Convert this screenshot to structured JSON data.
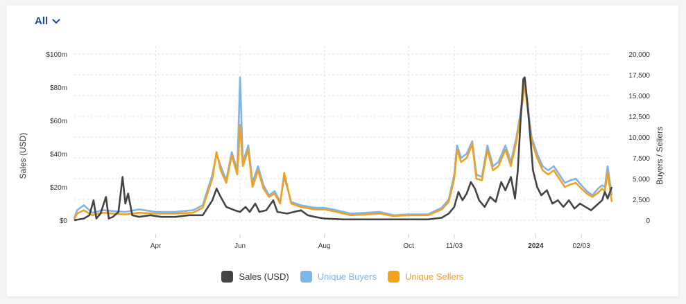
{
  "filter": {
    "label": "All"
  },
  "colors": {
    "sales": "#444444",
    "buyers": "#7cb5ec",
    "sellers": "#f1a11e",
    "grid": "#e0e0e0",
    "axis_text": "#333333"
  },
  "chart_data": {
    "type": "line",
    "title": "",
    "left_axis": {
      "label": "Sales (USD)",
      "min": 0,
      "max": 100,
      "unit": "$m",
      "ticks": [
        "$0",
        "$20m",
        "$40m",
        "$60m",
        "$80m",
        "$100m"
      ],
      "tick_values": [
        0,
        20,
        40,
        60,
        80,
        100
      ]
    },
    "right_axis": {
      "label": "Buyers / Sellers",
      "min": 0,
      "max": 20000,
      "ticks": [
        "0",
        "2,500",
        "5,000",
        "7,500",
        "10,000",
        "12,500",
        "15,000",
        "17,500",
        "20,000"
      ],
      "tick_values": [
        0,
        2500,
        5000,
        7500,
        10000,
        12500,
        15000,
        17500,
        20000
      ]
    },
    "x_axis": {
      "range": [
        "2023-02-01",
        "2024-02-25"
      ],
      "ticks": [
        {
          "label": "Apr",
          "date": "2023-04-01",
          "bold": false
        },
        {
          "label": "Jun",
          "date": "2023-06-01",
          "bold": false
        },
        {
          "label": "Aug",
          "date": "2023-08-01",
          "bold": false
        },
        {
          "label": "Oct",
          "date": "2023-10-01",
          "bold": false
        },
        {
          "label": "11/03",
          "date": "2023-11-03",
          "bold": false
        },
        {
          "label": "2024",
          "date": "2024-01-01",
          "bold": true
        },
        {
          "label": "02/03",
          "date": "2024-02-03",
          "bold": false
        }
      ]
    },
    "grid": true,
    "legend_position": "bottom-center",
    "series": [
      {
        "name": "Sales (USD)",
        "axis": "left",
        "unit": "$m",
        "points": [
          [
            "2023-02-01",
            0
          ],
          [
            "2023-02-08",
            1
          ],
          [
            "2023-02-12",
            3
          ],
          [
            "2023-02-15",
            12
          ],
          [
            "2023-02-17",
            1
          ],
          [
            "2023-02-20",
            4
          ],
          [
            "2023-02-24",
            14
          ],
          [
            "2023-02-26",
            1
          ],
          [
            "2023-03-01",
            2
          ],
          [
            "2023-03-05",
            5
          ],
          [
            "2023-03-08",
            26
          ],
          [
            "2023-03-10",
            10
          ],
          [
            "2023-03-12",
            16
          ],
          [
            "2023-03-15",
            3
          ],
          [
            "2023-03-20",
            2
          ],
          [
            "2023-03-28",
            3
          ],
          [
            "2023-04-05",
            2
          ],
          [
            "2023-04-15",
            2
          ],
          [
            "2023-04-25",
            3
          ],
          [
            "2023-05-05",
            3
          ],
          [
            "2023-05-12",
            12
          ],
          [
            "2023-05-15",
            19
          ],
          [
            "2023-05-18",
            14
          ],
          [
            "2023-05-22",
            8
          ],
          [
            "2023-05-28",
            6
          ],
          [
            "2023-06-01",
            5
          ],
          [
            "2023-06-05",
            8
          ],
          [
            "2023-06-08",
            5
          ],
          [
            "2023-06-12",
            10
          ],
          [
            "2023-06-15",
            5
          ],
          [
            "2023-06-20",
            6
          ],
          [
            "2023-06-25",
            12
          ],
          [
            "2023-06-28",
            5
          ],
          [
            "2023-07-05",
            4
          ],
          [
            "2023-07-10",
            5
          ],
          [
            "2023-07-15",
            6
          ],
          [
            "2023-07-20",
            3
          ],
          [
            "2023-07-25",
            2
          ],
          [
            "2023-08-01",
            1
          ],
          [
            "2023-08-15",
            0.5
          ],
          [
            "2023-09-01",
            0.5
          ],
          [
            "2023-09-15",
            0.5
          ],
          [
            "2023-10-01",
            0.5
          ],
          [
            "2023-10-15",
            0.5
          ],
          [
            "2023-10-25",
            1.5
          ],
          [
            "2023-10-30",
            4
          ],
          [
            "2023-11-03",
            8
          ],
          [
            "2023-11-06",
            17
          ],
          [
            "2023-11-09",
            12
          ],
          [
            "2023-11-12",
            16
          ],
          [
            "2023-11-15",
            23
          ],
          [
            "2023-11-18",
            19
          ],
          [
            "2023-11-21",
            12
          ],
          [
            "2023-11-25",
            8
          ],
          [
            "2023-11-29",
            14
          ],
          [
            "2023-12-03",
            11
          ],
          [
            "2023-12-07",
            23
          ],
          [
            "2023-12-10",
            18
          ],
          [
            "2023-12-14",
            26
          ],
          [
            "2023-12-17",
            13
          ],
          [
            "2023-12-19",
            30
          ],
          [
            "2023-12-21",
            60
          ],
          [
            "2023-12-23",
            85
          ],
          [
            "2023-12-24",
            86
          ],
          [
            "2023-12-26",
            70
          ],
          [
            "2023-12-28",
            50
          ],
          [
            "2023-12-30",
            30
          ],
          [
            "2024-01-02",
            20
          ],
          [
            "2024-01-05",
            15
          ],
          [
            "2024-01-09",
            18
          ],
          [
            "2024-01-13",
            10
          ],
          [
            "2024-01-17",
            12
          ],
          [
            "2024-01-21",
            8
          ],
          [
            "2024-01-25",
            12
          ],
          [
            "2024-01-29",
            7
          ],
          [
            "2024-02-02",
            10
          ],
          [
            "2024-02-06",
            8
          ],
          [
            "2024-02-10",
            6
          ],
          [
            "2024-02-14",
            9
          ],
          [
            "2024-02-18",
            12
          ],
          [
            "2024-02-20",
            17
          ],
          [
            "2024-02-22",
            13
          ],
          [
            "2024-02-25",
            20
          ]
        ]
      },
      {
        "name": "Unique Buyers",
        "axis": "right",
        "points": [
          [
            "2023-02-01",
            200
          ],
          [
            "2023-02-03",
            1200
          ],
          [
            "2023-02-08",
            1800
          ],
          [
            "2023-02-14",
            900
          ],
          [
            "2023-02-22",
            1200
          ],
          [
            "2023-03-01",
            1100
          ],
          [
            "2023-03-10",
            1000
          ],
          [
            "2023-03-20",
            1300
          ],
          [
            "2023-04-01",
            1000
          ],
          [
            "2023-04-15",
            1000
          ],
          [
            "2023-04-28",
            1200
          ],
          [
            "2023-05-05",
            1800
          ],
          [
            "2023-05-12",
            5500
          ],
          [
            "2023-05-15",
            8000
          ],
          [
            "2023-05-18",
            6500
          ],
          [
            "2023-05-22",
            4800
          ],
          [
            "2023-05-26",
            8200
          ],
          [
            "2023-05-30",
            6000
          ],
          [
            "2023-06-01",
            17200
          ],
          [
            "2023-06-03",
            7000
          ],
          [
            "2023-06-07",
            9000
          ],
          [
            "2023-06-10",
            4500
          ],
          [
            "2023-06-14",
            6500
          ],
          [
            "2023-06-18",
            4200
          ],
          [
            "2023-06-22",
            3000
          ],
          [
            "2023-06-26",
            3500
          ],
          [
            "2023-06-30",
            2200
          ],
          [
            "2023-07-03",
            5200
          ],
          [
            "2023-07-08",
            2200
          ],
          [
            "2023-07-15",
            1800
          ],
          [
            "2023-07-25",
            1500
          ],
          [
            "2023-08-01",
            1500
          ],
          [
            "2023-08-10",
            1200
          ],
          [
            "2023-08-20",
            800
          ],
          [
            "2023-09-01",
            900
          ],
          [
            "2023-09-10",
            1000
          ],
          [
            "2023-09-20",
            600
          ],
          [
            "2023-10-01",
            700
          ],
          [
            "2023-10-15",
            700
          ],
          [
            "2023-10-25",
            1500
          ],
          [
            "2023-10-30",
            2500
          ],
          [
            "2023-11-03",
            5500
          ],
          [
            "2023-11-05",
            9000
          ],
          [
            "2023-11-08",
            7500
          ],
          [
            "2023-11-12",
            8000
          ],
          [
            "2023-11-16",
            9500
          ],
          [
            "2023-11-19",
            5500
          ],
          [
            "2023-11-23",
            5200
          ],
          [
            "2023-11-27",
            9000
          ],
          [
            "2023-12-01",
            6500
          ],
          [
            "2023-12-05",
            7000
          ],
          [
            "2023-12-10",
            9000
          ],
          [
            "2023-12-14",
            7000
          ],
          [
            "2023-12-18",
            10000
          ],
          [
            "2023-12-21",
            13000
          ],
          [
            "2023-12-24",
            16800
          ],
          [
            "2023-12-26",
            14000
          ],
          [
            "2023-12-29",
            10000
          ],
          [
            "2024-01-02",
            8000
          ],
          [
            "2024-01-06",
            6500
          ],
          [
            "2024-01-10",
            6000
          ],
          [
            "2024-01-14",
            6500
          ],
          [
            "2024-01-18",
            5500
          ],
          [
            "2024-01-22",
            4500
          ],
          [
            "2024-01-26",
            4800
          ],
          [
            "2024-01-30",
            5000
          ],
          [
            "2024-02-03",
            4200
          ],
          [
            "2024-02-07",
            3500
          ],
          [
            "2024-02-11",
            3000
          ],
          [
            "2024-02-15",
            3800
          ],
          [
            "2024-02-18",
            4200
          ],
          [
            "2024-02-20",
            4000
          ],
          [
            "2024-02-22",
            6500
          ],
          [
            "2024-02-25",
            3000
          ]
        ]
      },
      {
        "name": "Unique Sellers",
        "axis": "right",
        "points": [
          [
            "2023-02-01",
            100
          ],
          [
            "2023-02-03",
            800
          ],
          [
            "2023-02-08",
            1200
          ],
          [
            "2023-02-14",
            600
          ],
          [
            "2023-02-22",
            900
          ],
          [
            "2023-03-01",
            800
          ],
          [
            "2023-03-10",
            700
          ],
          [
            "2023-03-20",
            900
          ],
          [
            "2023-04-01",
            800
          ],
          [
            "2023-04-15",
            800
          ],
          [
            "2023-04-28",
            900
          ],
          [
            "2023-05-05",
            1500
          ],
          [
            "2023-05-12",
            5000
          ],
          [
            "2023-05-15",
            8200
          ],
          [
            "2023-05-18",
            6000
          ],
          [
            "2023-05-22",
            4500
          ],
          [
            "2023-05-26",
            7800
          ],
          [
            "2023-05-30",
            5500
          ],
          [
            "2023-06-01",
            11500
          ],
          [
            "2023-06-03",
            6500
          ],
          [
            "2023-06-07",
            8500
          ],
          [
            "2023-06-10",
            4000
          ],
          [
            "2023-06-14",
            6000
          ],
          [
            "2023-06-18",
            3800
          ],
          [
            "2023-06-22",
            2800
          ],
          [
            "2023-06-26",
            3200
          ],
          [
            "2023-06-30",
            2000
          ],
          [
            "2023-07-03",
            5700
          ],
          [
            "2023-07-08",
            2000
          ],
          [
            "2023-07-15",
            1600
          ],
          [
            "2023-07-25",
            1300
          ],
          [
            "2023-08-01",
            1300
          ],
          [
            "2023-08-10",
            1000
          ],
          [
            "2023-08-20",
            600
          ],
          [
            "2023-09-01",
            700
          ],
          [
            "2023-09-10",
            800
          ],
          [
            "2023-09-20",
            500
          ],
          [
            "2023-10-01",
            600
          ],
          [
            "2023-10-15",
            600
          ],
          [
            "2023-10-25",
            1300
          ],
          [
            "2023-10-30",
            2200
          ],
          [
            "2023-11-03",
            5000
          ],
          [
            "2023-11-05",
            8500
          ],
          [
            "2023-11-08",
            7000
          ],
          [
            "2023-11-12",
            7500
          ],
          [
            "2023-11-16",
            9200
          ],
          [
            "2023-11-19",
            5000
          ],
          [
            "2023-11-23",
            4800
          ],
          [
            "2023-11-27",
            8500
          ],
          [
            "2023-12-01",
            6000
          ],
          [
            "2023-12-05",
            6500
          ],
          [
            "2023-12-10",
            8500
          ],
          [
            "2023-12-14",
            6500
          ],
          [
            "2023-12-18",
            9500
          ],
          [
            "2023-12-21",
            12500
          ],
          [
            "2023-12-24",
            16300
          ],
          [
            "2023-12-26",
            13500
          ],
          [
            "2023-12-29",
            9500
          ],
          [
            "2024-01-02",
            7500
          ],
          [
            "2024-01-06",
            6000
          ],
          [
            "2024-01-10",
            5500
          ],
          [
            "2024-01-14",
            6000
          ],
          [
            "2024-01-18",
            5000
          ],
          [
            "2024-01-22",
            4000
          ],
          [
            "2024-01-26",
            4300
          ],
          [
            "2024-01-30",
            4500
          ],
          [
            "2024-02-03",
            3800
          ],
          [
            "2024-02-07",
            3200
          ],
          [
            "2024-02-11",
            2800
          ],
          [
            "2024-02-15",
            3300
          ],
          [
            "2024-02-18",
            3800
          ],
          [
            "2024-02-20",
            3500
          ],
          [
            "2024-02-22",
            5800
          ],
          [
            "2024-02-25",
            2200
          ]
        ]
      }
    ]
  }
}
